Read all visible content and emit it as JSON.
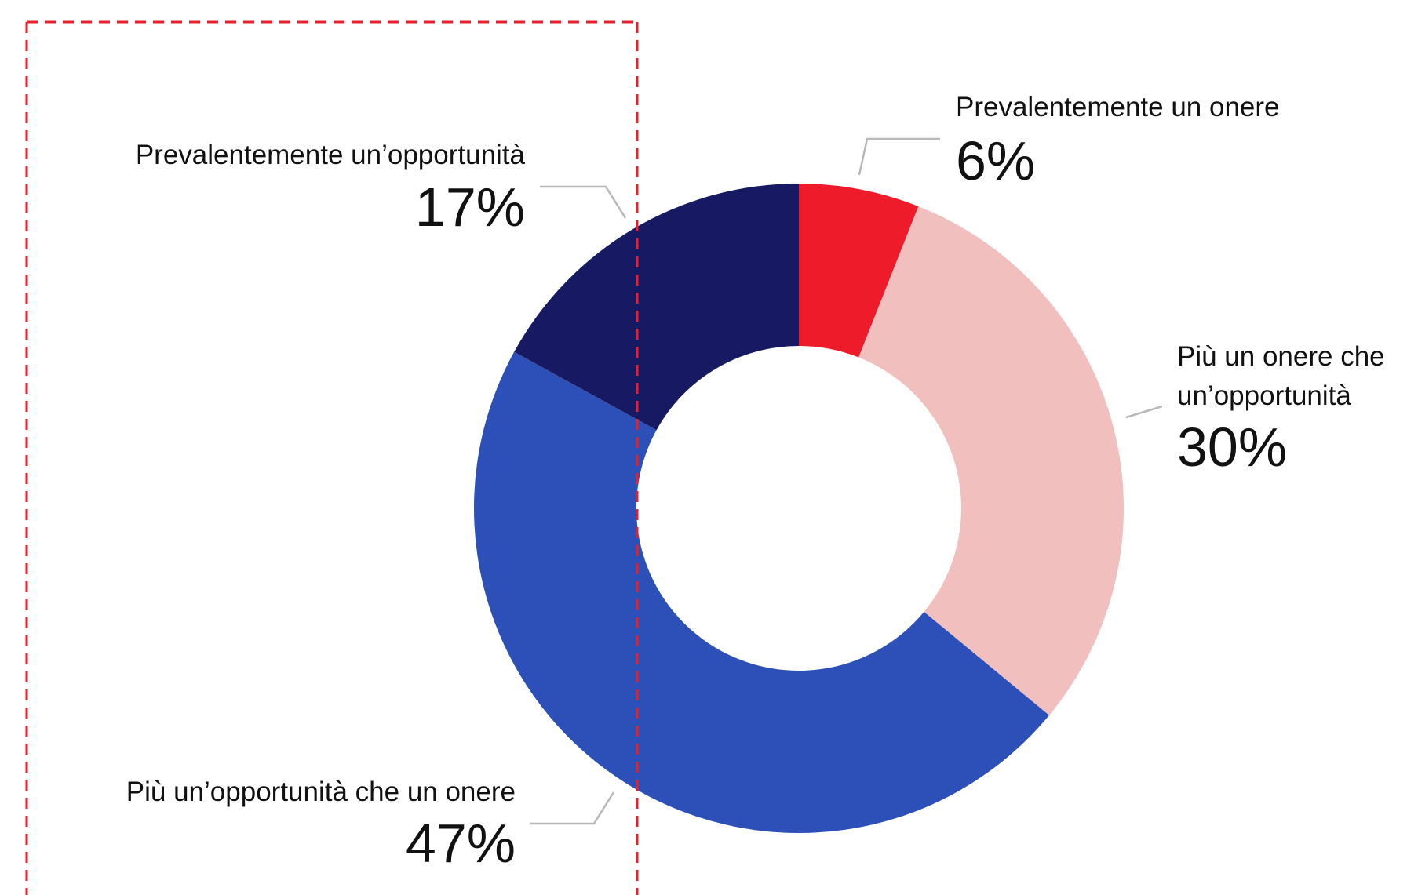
{
  "chart_data": {
    "type": "donut",
    "categories": [
      "Prevalentemente un onere",
      "Più un onere che un’opportunità",
      "Più un’opportunità che un onere",
      "Prevalentemente un’opportunità"
    ],
    "values": [
      6,
      30,
      47,
      17
    ],
    "value_labels": [
      "6%",
      "30%",
      "47%",
      "17%"
    ],
    "colors": [
      "#ee1c2b",
      "#f1bfbe",
      "#2c50b7",
      "#171a63"
    ]
  }
}
